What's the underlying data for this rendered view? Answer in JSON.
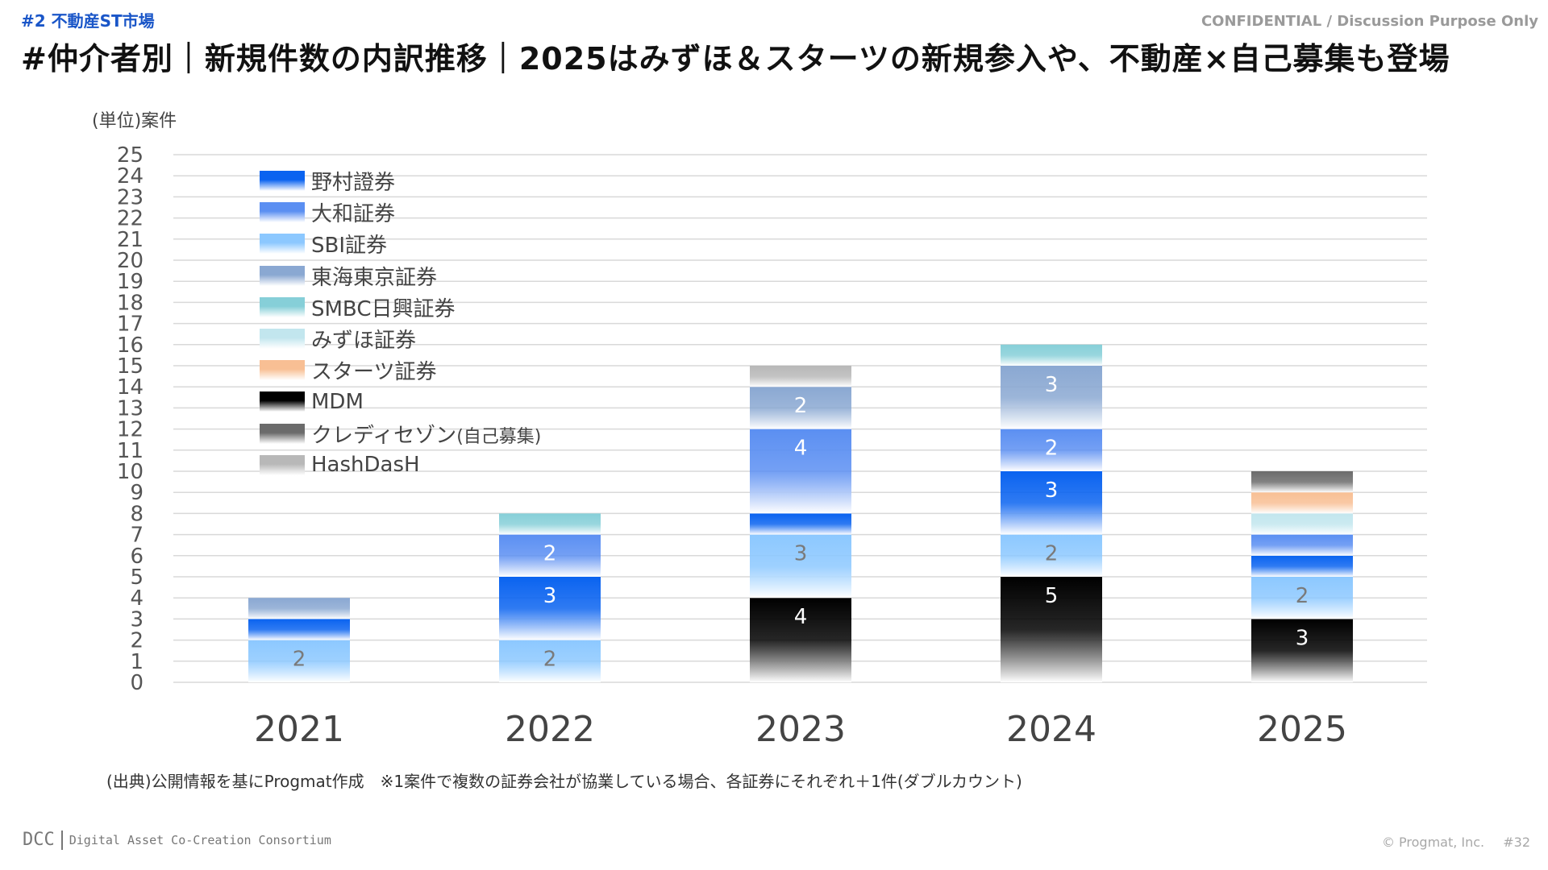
{
  "header": {
    "section_tag": "#2  不動産ST市場",
    "confidential": "CONFIDENTIAL / Discussion Purpose Only",
    "title": "#仲介者別｜新規件数の内訳推移｜2025はみずほ＆スターツの新規参入や、不動産×自己募集も登場"
  },
  "chart_data": {
    "type": "bar",
    "stacked": true,
    "unit_label": "(単位)案件",
    "categories": [
      "2021",
      "2022",
      "2023",
      "2024",
      "2025"
    ],
    "ylim": [
      0,
      25
    ],
    "y_ticks": [
      "0",
      "1",
      "2",
      "3",
      "4",
      "5",
      "6",
      "7",
      "8",
      "9",
      "10",
      "11",
      "12",
      "13",
      "14",
      "15",
      "16",
      "17",
      "18",
      "19",
      "20",
      "21",
      "22",
      "23",
      "24",
      "25"
    ],
    "grid": true,
    "legend_position": "top-left",
    "series": [
      {
        "name": "MDM",
        "color": "#000000",
        "values": [
          0,
          0,
          4,
          5,
          3
        ],
        "labels": [
          "",
          "",
          "4",
          "5",
          "3"
        ],
        "label_color": "#ffffff"
      },
      {
        "name": "SBI証券",
        "color": "#8cc8ff",
        "values": [
          2,
          2,
          3,
          2,
          2
        ],
        "labels": [
          "2",
          "2",
          "3",
          "2",
          "2"
        ],
        "label_color": "#7a7a7a"
      },
      {
        "name": "野村證券",
        "color": "#0a63f0",
        "values": [
          1,
          3,
          1,
          3,
          1
        ],
        "labels": [
          "",
          "3",
          "",
          "3",
          ""
        ],
        "label_color": "#ffffff"
      },
      {
        "name": "大和証券",
        "color": "#5b8ff2",
        "values": [
          0,
          2,
          4,
          2,
          1
        ],
        "labels": [
          "",
          "2",
          "4",
          "2",
          ""
        ],
        "label_color": "#ffffff"
      },
      {
        "name": "東海東京証券",
        "color": "#8aa8d2",
        "values": [
          1,
          0,
          2,
          3,
          0
        ],
        "labels": [
          "",
          "",
          "2",
          "3",
          ""
        ],
        "label_color": "#ffffff"
      },
      {
        "name": "SMBC日興証券",
        "color": "#86cfd8",
        "values": [
          0,
          1,
          0,
          1,
          0
        ],
        "labels": [
          "",
          "",
          "",
          "",
          ""
        ],
        "label_color": "#ffffff"
      },
      {
        "name": "みずほ証券",
        "color": "#c2e6ee",
        "values": [
          0,
          0,
          0,
          0,
          1
        ],
        "labels": [
          "",
          "",
          "",
          "",
          ""
        ],
        "label_color": "#ffffff"
      },
      {
        "name": "スターツ証券",
        "color": "#f8bf94",
        "values": [
          0,
          0,
          0,
          0,
          1
        ],
        "labels": [
          "",
          "",
          "",
          "",
          ""
        ],
        "label_color": "#ffffff"
      },
      {
        "name": "クレディセゾン(自己募集)",
        "color": "#6b6b6b",
        "values": [
          0,
          0,
          0,
          0,
          1
        ],
        "labels": [
          "",
          "",
          "",
          "",
          ""
        ],
        "label_color": "#ffffff"
      },
      {
        "name": "HashDasH",
        "color": "#b8b8b8",
        "values": [
          0,
          0,
          1,
          0,
          0
        ],
        "labels": [
          "",
          "",
          "",
          "",
          ""
        ],
        "label_color": "#ffffff"
      }
    ]
  },
  "legend": {
    "items": [
      {
        "label": "野村證券",
        "color": "#0a63f0"
      },
      {
        "label": "大和証券",
        "color": "#5b8ff2"
      },
      {
        "label": "SBI証券",
        "color": "#8cc8ff"
      },
      {
        "label": "東海東京証券",
        "color": "#8aa8d2"
      },
      {
        "label": "SMBC日興証券",
        "color": "#86cfd8"
      },
      {
        "label": "みずほ証券",
        "color": "#c2e6ee"
      },
      {
        "label": "スターツ証券",
        "color": "#f8bf94"
      },
      {
        "label": "MDM",
        "color": "#000000"
      },
      {
        "label": "クレディセゾン",
        "label_suffix": "(自己募集)",
        "color": "#6b6b6b"
      },
      {
        "label": "HashDasH",
        "color": "#b8b8b8"
      }
    ]
  },
  "source_note": "(出典)公開情報を基にProgmat作成　※1案件で複数の証券会社が協業している場合、各証券にそれぞれ＋1件(ダブルカウント)",
  "footer": {
    "logo_text": "DCC",
    "consortium_name": "Digital Asset Co-Creation Consortium",
    "copyright": "© Progmat, Inc.",
    "page_number": "#32"
  }
}
